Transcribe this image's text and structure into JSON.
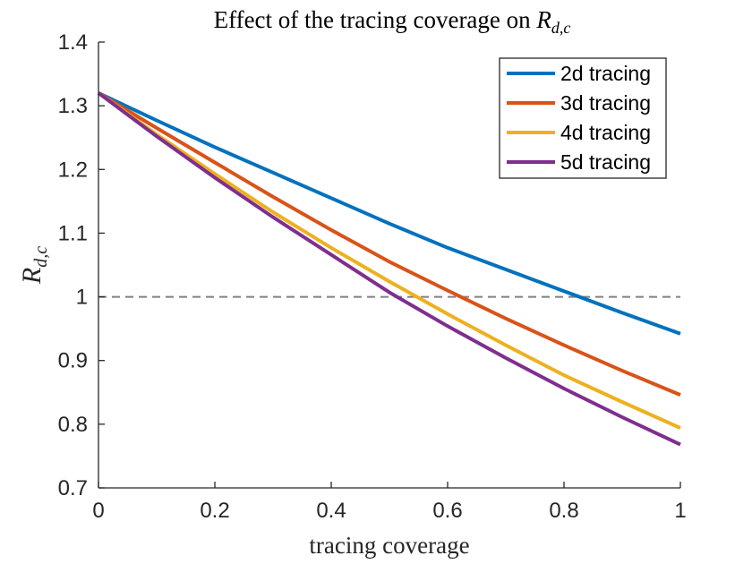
{
  "chart_data": {
    "type": "line",
    "title": "Effect of the tracing coverage on R_{d,c}",
    "title_text": "Effect of the tracing coverage on ",
    "title_symbol": "R",
    "title_subscript": "d,c",
    "xlabel": "tracing coverage",
    "ylabel_symbol": "R",
    "ylabel_subscript": "d,c",
    "xlim": [
      0,
      1
    ],
    "ylim": [
      0.7,
      1.4
    ],
    "xticks": [
      0,
      0.2,
      0.4,
      0.6,
      0.8,
      1
    ],
    "xtick_labels": [
      "0",
      "0.2",
      "0.4",
      "0.6",
      "0.8",
      "1"
    ],
    "yticks": [
      0.7,
      0.8,
      0.9,
      1.0,
      1.1,
      1.2,
      1.3,
      1.4
    ],
    "ytick_labels": [
      "0.7",
      "0.8",
      "0.9",
      "1",
      "1.1",
      "1.2",
      "1.3",
      "1.4"
    ],
    "grid": false,
    "legend_position": "top-right",
    "reference_line": {
      "y": 1,
      "style": "dashed",
      "color": "#808080"
    },
    "x": [
      0,
      0.1,
      0.2,
      0.3,
      0.4,
      0.5,
      0.6,
      0.7,
      0.8,
      0.9,
      1.0
    ],
    "series": [
      {
        "name": "2d tracing",
        "color": "#0072BD",
        "values": [
          1.32,
          1.277,
          1.235,
          1.195,
          1.155,
          1.115,
          1.077,
          1.043,
          1.009,
          0.975,
          0.942
        ]
      },
      {
        "name": "3d tracing",
        "color": "#D95319",
        "values": [
          1.32,
          1.265,
          1.211,
          1.157,
          1.105,
          1.055,
          1.01,
          0.966,
          0.924,
          0.884,
          0.846
        ]
      },
      {
        "name": "4d tracing",
        "color": "#EDB120",
        "values": [
          1.32,
          1.255,
          1.193,
          1.133,
          1.077,
          1.024,
          0.973,
          0.924,
          0.877,
          0.835,
          0.794
        ]
      },
      {
        "name": "5d tracing",
        "color": "#7E2F8E",
        "values": [
          1.32,
          1.252,
          1.187,
          1.125,
          1.066,
          1.007,
          0.954,
          0.904,
          0.856,
          0.811,
          0.768
        ]
      }
    ]
  }
}
